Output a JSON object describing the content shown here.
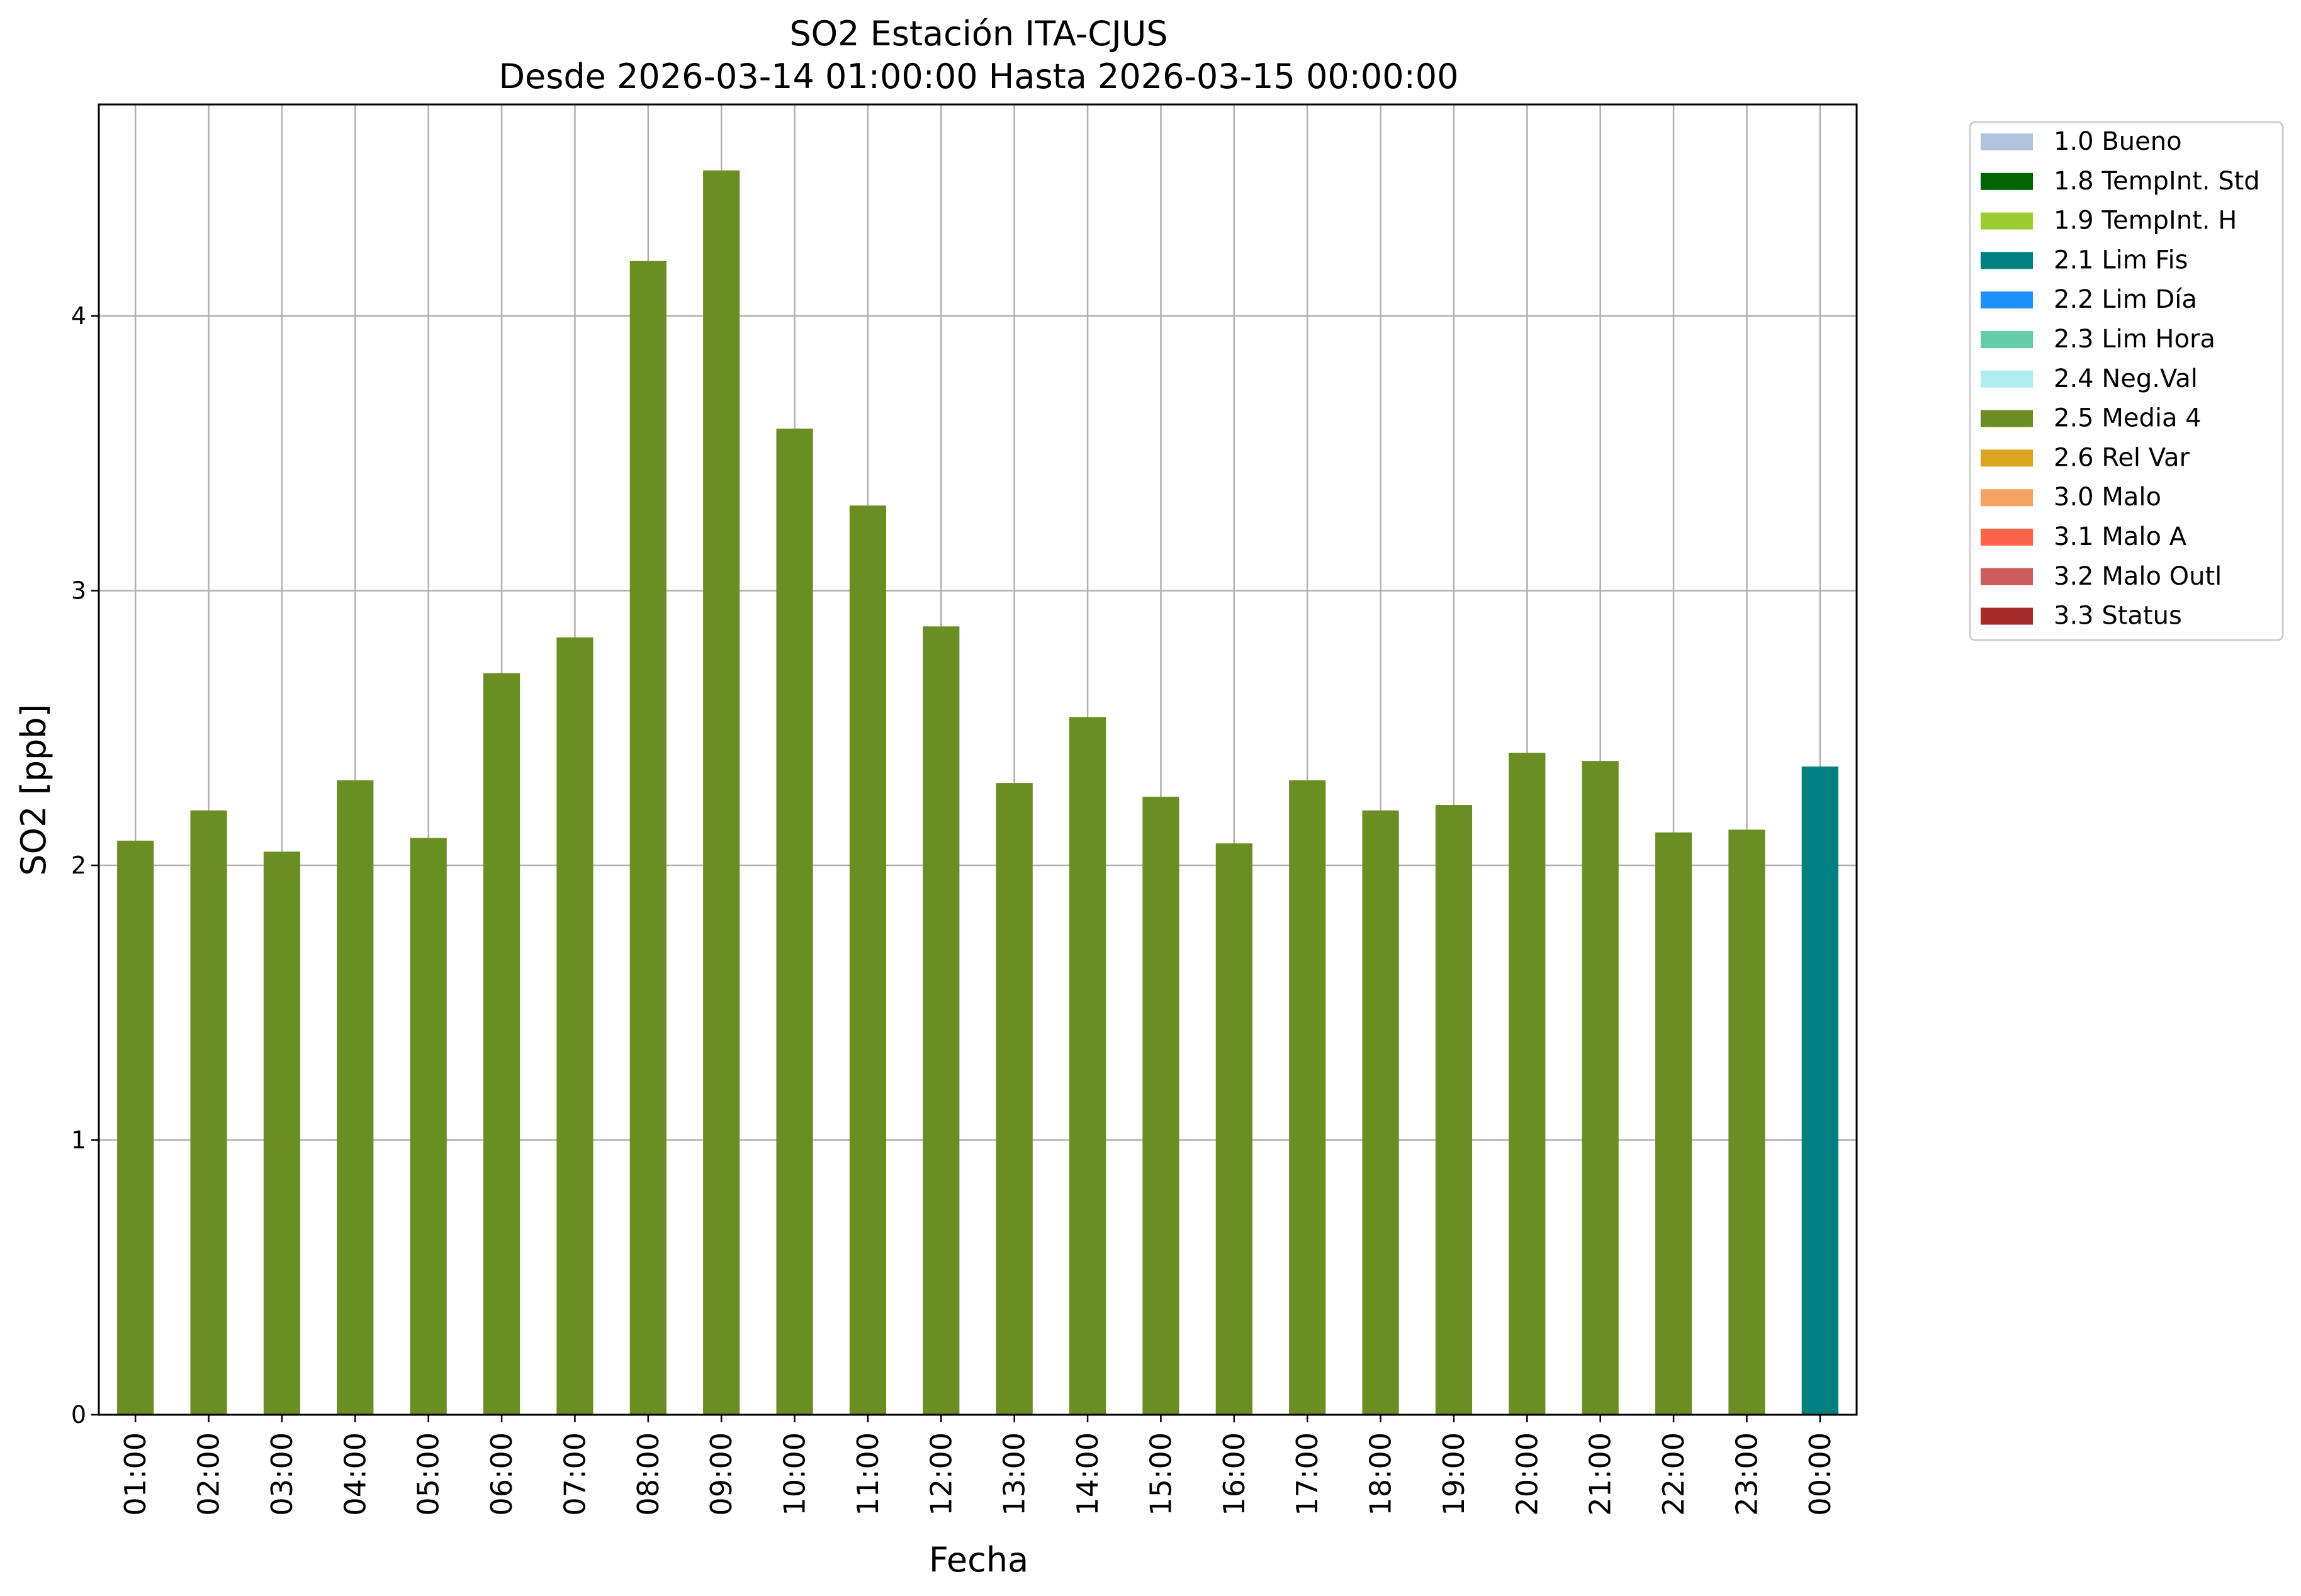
{
  "chart_data": {
    "type": "bar",
    "title": "SO2 Estación ITA-CJUS",
    "subtitle": "Desde 2026-03-14 01:00:00 Hasta 2026-03-15 00:00:00",
    "xlabel": "Fecha",
    "ylabel": "SO2 [ppb]",
    "ylim": [
      0,
      4.77
    ],
    "yticks": [
      0,
      1,
      2,
      3,
      4
    ],
    "grid": true,
    "legend_position": "outside-top-right",
    "categories": [
      "01:00",
      "02:00",
      "03:00",
      "04:00",
      "05:00",
      "06:00",
      "07:00",
      "08:00",
      "09:00",
      "10:00",
      "11:00",
      "12:00",
      "13:00",
      "14:00",
      "15:00",
      "16:00",
      "17:00",
      "18:00",
      "19:00",
      "20:00",
      "21:00",
      "22:00",
      "23:00",
      "00:00"
    ],
    "values": [
      2.09,
      2.2,
      2.05,
      2.31,
      2.1,
      2.7,
      2.83,
      4.2,
      4.53,
      3.59,
      3.31,
      2.87,
      2.3,
      2.54,
      2.25,
      2.08,
      2.31,
      2.2,
      2.22,
      2.41,
      2.38,
      2.12,
      2.13,
      2.36
    ],
    "flags": [
      "2.5 Media 4",
      "2.5 Media 4",
      "2.5 Media 4",
      "2.5 Media 4",
      "2.5 Media 4",
      "2.5 Media 4",
      "2.5 Media 4",
      "2.5 Media 4",
      "2.5 Media 4",
      "2.5 Media 4",
      "2.5 Media 4",
      "2.5 Media 4",
      "2.5 Media 4",
      "2.5 Media 4",
      "2.5 Media 4",
      "2.5 Media 4",
      "2.5 Media 4",
      "2.5 Media 4",
      "2.5 Media 4",
      "2.5 Media 4",
      "2.5 Media 4",
      "2.5 Media 4",
      "2.5 Media 4",
      "2.1 Lim Fis"
    ],
    "legend": [
      {
        "label": "1.0 Bueno",
        "color": "#b0c4de"
      },
      {
        "label": "1.8 TempInt. Std",
        "color": "#006400"
      },
      {
        "label": "1.9 TempInt. H",
        "color": "#9acd32"
      },
      {
        "label": "2.1 Lim Fis",
        "color": "#008080"
      },
      {
        "label": "2.2 Lim Día",
        "color": "#1e90ff"
      },
      {
        "label": "2.3 Lim Hora",
        "color": "#66cdaa"
      },
      {
        "label": "2.4 Neg.Val",
        "color": "#afeeee"
      },
      {
        "label": "2.5 Media 4",
        "color": "#6b8e23"
      },
      {
        "label": "2.6 Rel Var",
        "color": "#daa520"
      },
      {
        "label": "3.0 Malo",
        "color": "#f4a460"
      },
      {
        "label": "3.1 Malo A",
        "color": "#ff6347"
      },
      {
        "label": "3.2 Malo Outl",
        "color": "#cd5c5c"
      },
      {
        "label": "3.3 Status",
        "color": "#a52a2a"
      }
    ]
  }
}
